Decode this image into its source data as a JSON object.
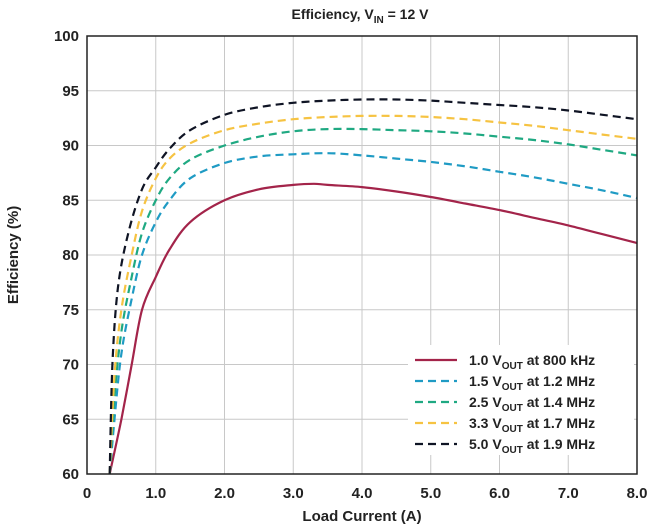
{
  "chart_data": {
    "type": "line",
    "title": {
      "prefix": "Efficiency, V",
      "sub": "IN",
      "suffix": " = 12 V"
    },
    "xlabel": "Load Current (A)",
    "ylabel": "Efficiency (%)",
    "xlim": [
      0,
      8
    ],
    "ylim": [
      60,
      100
    ],
    "x_ticks": [
      0,
      1,
      2,
      3,
      4,
      5,
      6,
      7,
      8
    ],
    "x_tick_labels": [
      "0",
      "1.0",
      "2.0",
      "3.0",
      "4.0",
      "5.0",
      "6.0",
      "7.0",
      "8.0"
    ],
    "y_ticks": [
      60,
      65,
      70,
      75,
      80,
      85,
      90,
      95,
      100
    ],
    "y_tick_labels": [
      "60",
      "65",
      "70",
      "75",
      "80",
      "85",
      "90",
      "95",
      "100"
    ],
    "grid": true,
    "legend_position": "bottom-right",
    "series": [
      {
        "name_prefix": "1.0 V",
        "name_sub": "OUT",
        "name_suffix": " at 800 kHz",
        "color": "#a3244a",
        "dash": "solid",
        "x": [
          0.33,
          0.5,
          0.65,
          0.8,
          1.0,
          1.2,
          1.5,
          2.0,
          2.5,
          3.0,
          3.3,
          3.5,
          4.0,
          4.5,
          5.0,
          5.5,
          6.0,
          6.5,
          7.0,
          7.5,
          8.0
        ],
        "y": [
          60,
          65,
          70,
          75,
          78,
          80.5,
          83,
          85,
          86,
          86.4,
          86.5,
          86.4,
          86.2,
          85.8,
          85.3,
          84.7,
          84.1,
          83.4,
          82.7,
          81.9,
          81.1
        ]
      },
      {
        "name_prefix": "1.5 V",
        "name_sub": "OUT",
        "name_suffix": " at 1.2 MHz",
        "color": "#1f9bc4",
        "dash": "dashed",
        "x": [
          0.33,
          0.4,
          0.5,
          0.65,
          0.8,
          1.0,
          1.2,
          1.5,
          2.0,
          2.5,
          3.0,
          3.5,
          4.0,
          4.5,
          5.0,
          5.5,
          6.0,
          6.5,
          7.0,
          7.5,
          8.0
        ],
        "y": [
          60,
          65,
          71,
          76,
          80,
          83,
          85,
          87,
          88.4,
          89,
          89.2,
          89.3,
          89.1,
          88.8,
          88.5,
          88.1,
          87.6,
          87.1,
          86.5,
          85.9,
          85.2
        ]
      },
      {
        "name_prefix": "2.5 V",
        "name_sub": "OUT",
        "name_suffix": " at 1.4 MHz",
        "color": "#1fa982",
        "dash": "dashed",
        "x": [
          0.33,
          0.4,
          0.5,
          0.65,
          0.8,
          1.0,
          1.2,
          1.5,
          2.0,
          2.5,
          3.0,
          3.5,
          4.0,
          4.5,
          5.0,
          5.5,
          6.0,
          6.5,
          7.0,
          7.5,
          8.0
        ],
        "y": [
          60,
          67,
          73,
          78,
          82,
          85,
          87,
          88.7,
          90,
          90.8,
          91.3,
          91.5,
          91.5,
          91.4,
          91.3,
          91.1,
          90.8,
          90.5,
          90.1,
          89.6,
          89.1
        ]
      },
      {
        "name_prefix": "3.3 V",
        "name_sub": "OUT",
        "name_suffix": " at 1.7 MHz",
        "color": "#f6c342",
        "dash": "dashed",
        "x": [
          0.33,
          0.4,
          0.5,
          0.65,
          0.8,
          1.0,
          1.2,
          1.5,
          2.0,
          2.5,
          3.0,
          3.5,
          4.0,
          4.5,
          5.0,
          5.5,
          6.0,
          6.5,
          7.0,
          7.5,
          8.0
        ],
        "y": [
          60,
          69,
          75,
          80,
          84,
          87,
          88.8,
          90.2,
          91.4,
          92,
          92.4,
          92.6,
          92.7,
          92.7,
          92.6,
          92.4,
          92.1,
          91.8,
          91.4,
          91,
          90.6
        ]
      },
      {
        "name_prefix": "5.0 V",
        "name_sub": "OUT",
        "name_suffix": " at 1.9 MHz",
        "color": "#0f1424",
        "dash": "dashed",
        "x": [
          0.33,
          0.37,
          0.45,
          0.6,
          0.8,
          1.0,
          1.2,
          1.5,
          2.0,
          2.5,
          3.0,
          3.5,
          4.0,
          4.5,
          5.0,
          5.5,
          6.0,
          6.5,
          7.0,
          7.5,
          8.0
        ],
        "y": [
          60,
          70,
          77,
          82,
          86,
          88,
          89.7,
          91.4,
          92.8,
          93.5,
          93.9,
          94.1,
          94.2,
          94.2,
          94.1,
          93.9,
          93.7,
          93.5,
          93.2,
          92.8,
          92.4
        ]
      }
    ]
  }
}
